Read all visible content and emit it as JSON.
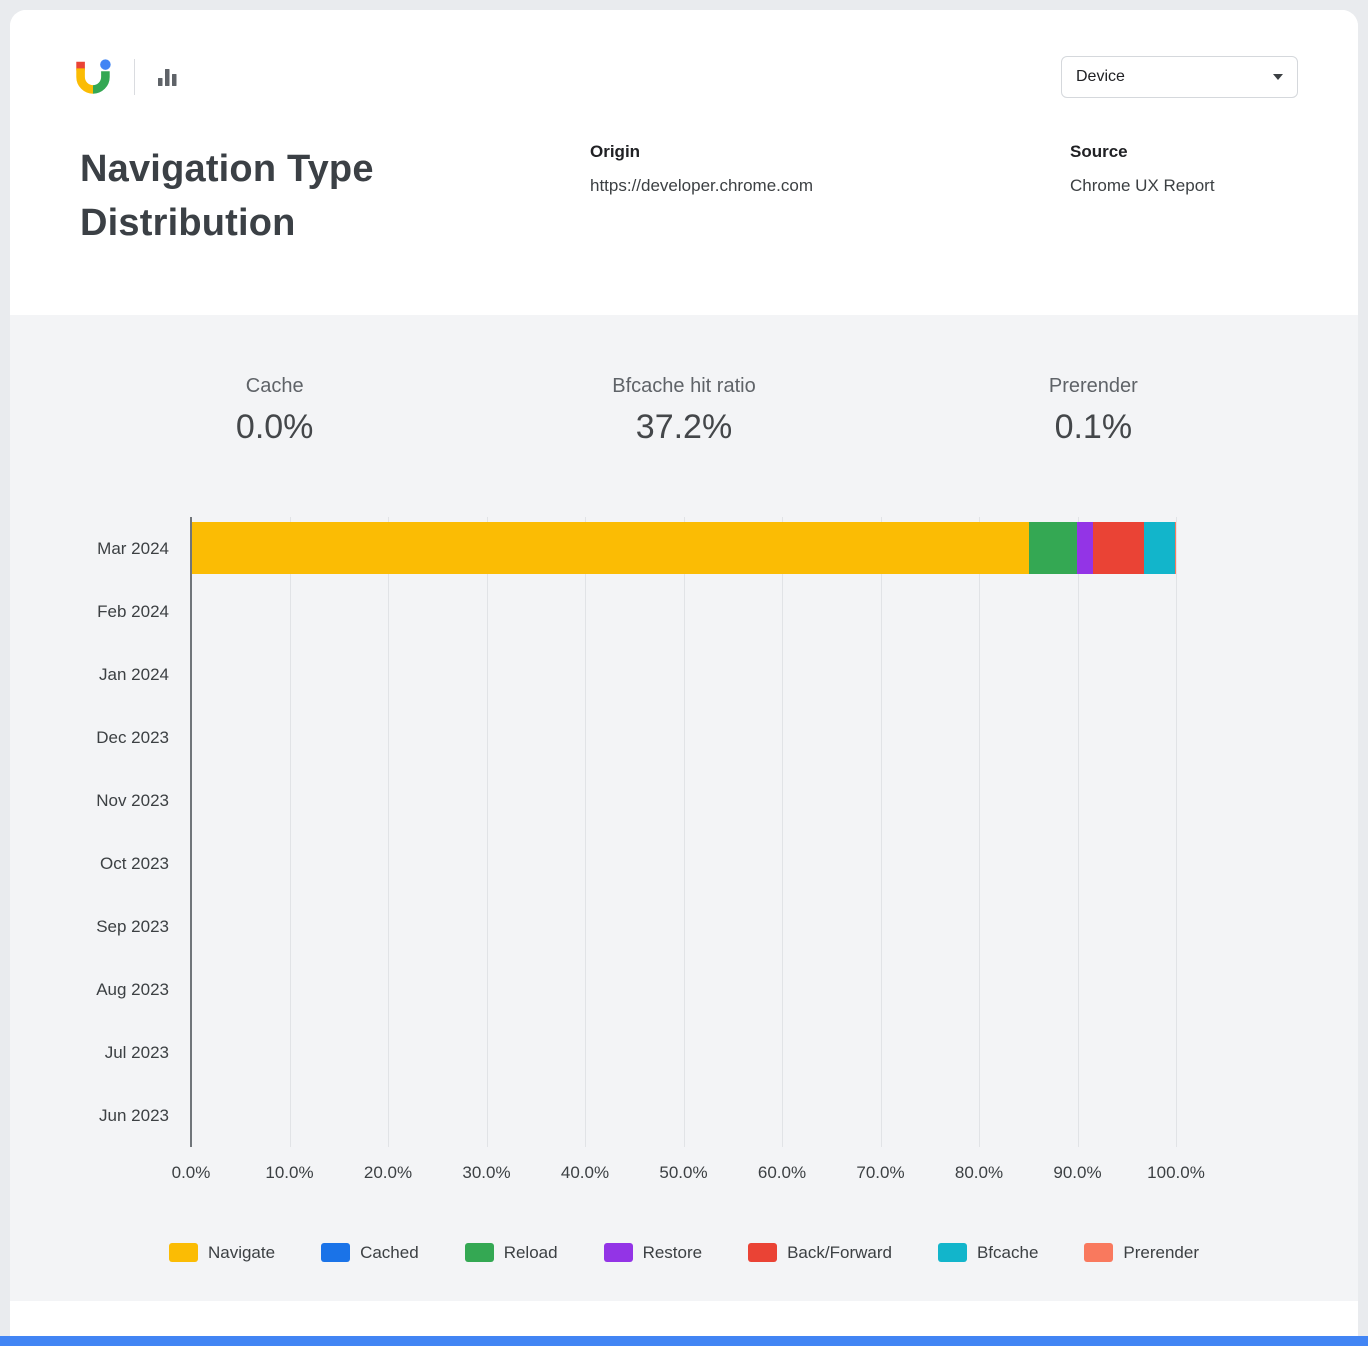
{
  "topbar": {
    "device_dropdown": {
      "value": "Device"
    }
  },
  "header": {
    "title": "Navigation Type Distribution",
    "origin_label": "Origin",
    "origin_value": "https://developer.chrome.com",
    "source_label": "Source",
    "source_value": "Chrome UX Report"
  },
  "stats": [
    {
      "label": "Cache",
      "value": "0.0%"
    },
    {
      "label": "Bfcache hit ratio",
      "value": "37.2%"
    },
    {
      "label": "Prerender",
      "value": "0.1%"
    }
  ],
  "chart_data": {
    "type": "bar",
    "orientation": "horizontal",
    "stacked": true,
    "title": "Navigation Type Distribution",
    "categories": [
      "Mar 2024",
      "Feb 2024",
      "Jan 2024",
      "Dec 2023",
      "Nov 2023",
      "Oct 2023",
      "Sep 2023",
      "Aug 2023",
      "Jul 2023",
      "Jun 2023"
    ],
    "series": [
      {
        "name": "Navigate",
        "color": "#FBBC04",
        "values": [
          85.1,
          0,
          0,
          0,
          0,
          0,
          0,
          0,
          0,
          0
        ]
      },
      {
        "name": "Cached",
        "color": "#1A73E8",
        "values": [
          0,
          0,
          0,
          0,
          0,
          0,
          0,
          0,
          0,
          0
        ]
      },
      {
        "name": "Reload",
        "color": "#34A853",
        "values": [
          4.9,
          0,
          0,
          0,
          0,
          0,
          0,
          0,
          0,
          0
        ]
      },
      {
        "name": "Restore",
        "color": "#9334E6",
        "values": [
          1.6,
          0,
          0,
          0,
          0,
          0,
          0,
          0,
          0,
          0
        ]
      },
      {
        "name": "Back/Forward",
        "color": "#EA4335",
        "values": [
          5.2,
          0,
          0,
          0,
          0,
          0,
          0,
          0,
          0,
          0
        ]
      },
      {
        "name": "Bfcache",
        "color": "#12B5CB",
        "values": [
          3.1,
          0,
          0,
          0,
          0,
          0,
          0,
          0,
          0,
          0
        ]
      },
      {
        "name": "Prerender",
        "color": "#F9795E",
        "values": [
          0.1,
          0,
          0,
          0,
          0,
          0,
          0,
          0,
          0,
          0
        ]
      }
    ],
    "x_ticks": [
      "0.0%",
      "10.0%",
      "20.0%",
      "30.0%",
      "40.0%",
      "50.0%",
      "60.0%",
      "70.0%",
      "80.0%",
      "90.0%",
      "100.0%"
    ],
    "xlim": [
      0,
      100
    ],
    "grid": true,
    "legend_position": "bottom"
  },
  "footer": {
    "accent_color": "#4285F4"
  }
}
